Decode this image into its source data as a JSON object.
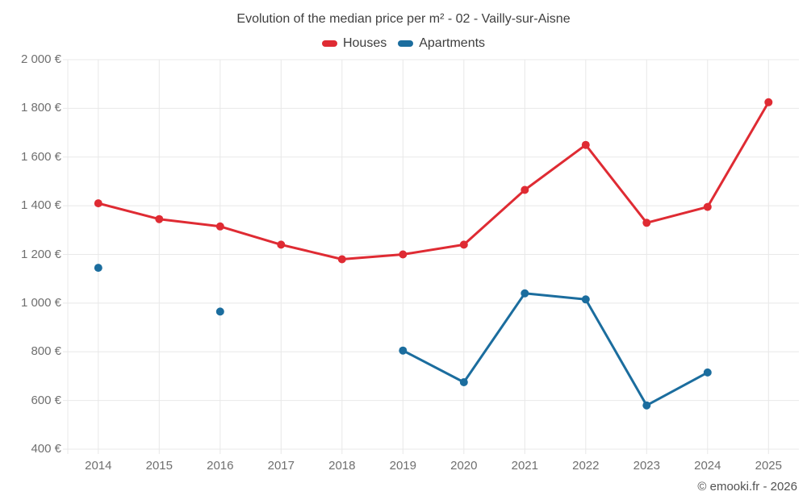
{
  "title": "Evolution of the median price per m² - 02 - Vailly-sur-Aisne",
  "legend": {
    "items": [
      {
        "label": "Houses",
        "color": "#df2b33"
      },
      {
        "label": "Apartments",
        "color": "#1b6d9e"
      }
    ]
  },
  "footer": {
    "copyright": "© emooki.fr - 2026"
  },
  "chart_data": {
    "type": "line",
    "title": "Evolution of the median price per m² - 02 - Vailly-sur-Aisne",
    "categories": [
      "2014",
      "2015",
      "2016",
      "2017",
      "2018",
      "2019",
      "2020",
      "2021",
      "2022",
      "2023",
      "2024",
      "2025"
    ],
    "series": [
      {
        "name": "Houses",
        "color": "#df2b33",
        "values": [
          1410,
          1345,
          1315,
          1240,
          1180,
          1200,
          1240,
          1465,
          1650,
          1330,
          1395,
          1825
        ]
      },
      {
        "name": "Apartments",
        "color": "#1b6d9e",
        "values": [
          1145,
          null,
          965,
          null,
          null,
          805,
          675,
          1040,
          1015,
          580,
          715,
          null
        ]
      }
    ],
    "xlabel": "",
    "ylabel": "",
    "ylim": [
      400,
      2000
    ],
    "ytick_values": [
      2000,
      1800,
      1600,
      1400,
      1200,
      1000,
      800,
      600,
      400
    ],
    "ytick_labels": [
      "2 000 €",
      "1 800 €",
      "1 600 €",
      "1 400 €",
      "1 200 €",
      "1 000 €",
      "800 €",
      "600 €",
      "400 €"
    ],
    "grid": true,
    "grid_color": "#e8e8e8",
    "legend_position": "top",
    "unit": "€",
    "point_radius": 5,
    "line_width": 3
  }
}
